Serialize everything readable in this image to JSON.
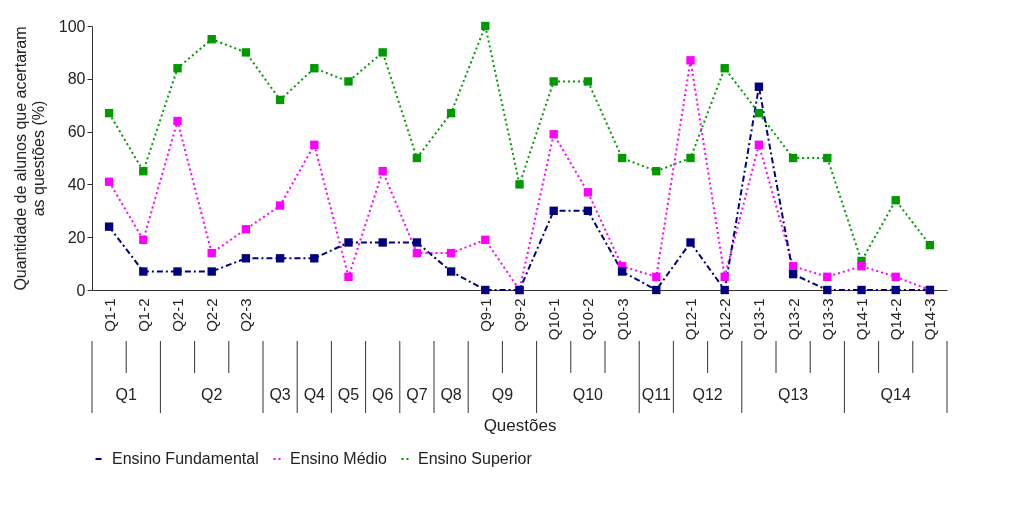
{
  "chart_data": {
    "type": "line",
    "xlabel": "Questões",
    "ylabel": "Quantidade de alunos que acertaram as questões (%)",
    "categories": [
      "Q1-1",
      "Q1-2",
      "Q2-1",
      "Q2-2",
      "Q2-3",
      null,
      null,
      null,
      null,
      null,
      null,
      "Q9-1",
      "Q9-2",
      "Q10-1",
      "Q10-2",
      "Q10-3",
      null,
      "Q12-1",
      "Q12-2",
      "Q13-1",
      "Q13-2",
      "Q13-3",
      "Q14-1",
      "Q14-2",
      "Q14-3"
    ],
    "series": [
      {
        "name": "Ensino Fundamental",
        "color": "#000080",
        "line_style": "dashed",
        "values": [
          24,
          7,
          7,
          7,
          12,
          12,
          12,
          18,
          18,
          18,
          7,
          0,
          0,
          30,
          30,
          7,
          0,
          18,
          0,
          77,
          6,
          0,
          0,
          0,
          0
        ]
      },
      {
        "name": "Ensino Médio",
        "color": "#ff00ff",
        "line_style": "dotted",
        "values": [
          41,
          19,
          64,
          14,
          23,
          32,
          55,
          5,
          45,
          14,
          14,
          19,
          0,
          59,
          37,
          9,
          5,
          87,
          5,
          55,
          9,
          5,
          9,
          5,
          0
        ]
      },
      {
        "name": "Ensino Superior",
        "color": "#009900",
        "line_style": "dotted",
        "values": [
          67,
          45,
          84,
          95,
          90,
          72,
          84,
          79,
          90,
          50,
          67,
          100,
          40,
          79,
          79,
          50,
          45,
          50,
          84,
          67,
          50,
          50,
          11,
          34,
          17
        ]
      }
    ],
    "ylim": [
      0,
      100
    ],
    "yticks": [
      0,
      20,
      40,
      60,
      80,
      100
    ],
    "grid": false,
    "legend": "bottom",
    "marker": "square",
    "annotations": [
      "Q1",
      "Q2",
      "Q3",
      "Q4",
      "Q5",
      "Q6",
      "Q7",
      "Q8",
      "Q9",
      "Q10",
      "Q11",
      "Q12",
      "Q13",
      "Q14"
    ]
  }
}
